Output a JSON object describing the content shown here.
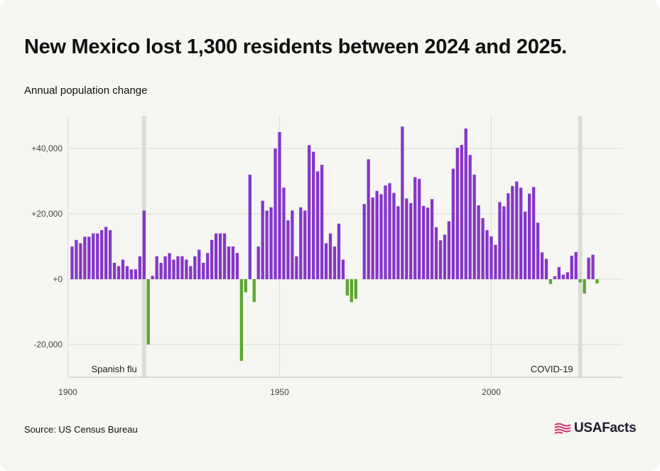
{
  "header": {
    "title": "New Mexico lost 1,300 residents between 2024 and 2025.",
    "subtitle": "Annual population change"
  },
  "footer": {
    "source": "Source: US Census Bureau",
    "logo_text": "USAFacts",
    "logo_icon": "usafacts-flag-icon"
  },
  "colors": {
    "positive": "#8536c9",
    "negative": "#5aa730",
    "highlight_band": "#dcdcd8",
    "gridline": "#dcdcd6",
    "background": "#f6f6f2",
    "logo_accent": "#d6336c"
  },
  "chart_data": {
    "type": "bar",
    "title": "New Mexico lost 1,300 residents between 2024 and 2025.",
    "ylabel": "Annual population change",
    "xlabel": "",
    "ylim": [
      -30000,
      50000
    ],
    "xlim": [
      1899,
      2030
    ],
    "yticks": [
      -20000,
      0,
      20000,
      40000
    ],
    "ytick_labels": [
      "-20,000",
      "+0",
      "+20,000",
      "+40,000"
    ],
    "xticks": [
      1900,
      1950,
      2000
    ],
    "xtick_labels": [
      "1900",
      "1950",
      "2000"
    ],
    "grid": true,
    "legend": "none",
    "annotations": [
      {
        "label": "Spanish flu",
        "year": 1918
      },
      {
        "label": "COVID-19",
        "year": 2021
      }
    ],
    "x": [
      1901,
      1902,
      1903,
      1904,
      1905,
      1906,
      1907,
      1908,
      1909,
      1910,
      1911,
      1912,
      1913,
      1914,
      1915,
      1916,
      1917,
      1918,
      1919,
      1920,
      1921,
      1922,
      1923,
      1924,
      1925,
      1926,
      1927,
      1928,
      1929,
      1930,
      1931,
      1932,
      1933,
      1934,
      1935,
      1936,
      1937,
      1938,
      1939,
      1940,
      1941,
      1942,
      1943,
      1944,
      1945,
      1946,
      1947,
      1948,
      1949,
      1950,
      1951,
      1952,
      1953,
      1954,
      1955,
      1956,
      1957,
      1958,
      1959,
      1960,
      1961,
      1962,
      1963,
      1964,
      1965,
      1966,
      1967,
      1968,
      1969,
      1970,
      1971,
      1972,
      1973,
      1974,
      1975,
      1976,
      1977,
      1978,
      1979,
      1980,
      1981,
      1982,
      1983,
      1984,
      1985,
      1986,
      1987,
      1988,
      1989,
      1990,
      1991,
      1992,
      1993,
      1994,
      1995,
      1996,
      1997,
      1998,
      1999,
      2000,
      2001,
      2002,
      2003,
      2004,
      2005,
      2006,
      2007,
      2008,
      2009,
      2010,
      2011,
      2012,
      2013,
      2014,
      2015,
      2016,
      2017,
      2018,
      2019,
      2020,
      2021,
      2022,
      2023,
      2024,
      2025
    ],
    "values": [
      10000,
      12000,
      11000,
      13000,
      13000,
      14000,
      14000,
      15000,
      16000,
      15000,
      5000,
      4000,
      6000,
      4000,
      3000,
      3000,
      7000,
      21000,
      -20000,
      1000,
      7000,
      5000,
      7000,
      8000,
      6000,
      7000,
      7000,
      6000,
      4000,
      7000,
      9000,
      5000,
      8000,
      12000,
      14000,
      14000,
      14000,
      10000,
      10000,
      8000,
      -25000,
      -4000,
      32000,
      -7000,
      10000,
      24000,
      21000,
      22000,
      40000,
      45000,
      28000,
      18000,
      21000,
      7000,
      22000,
      21000,
      41000,
      39000,
      33000,
      35000,
      11000,
      14000,
      10000,
      17000,
      6000,
      -5000,
      -7000,
      -6000,
      0,
      23000,
      36700,
      25000,
      27000,
      26000,
      28700,
      29400,
      26400,
      22300,
      46700,
      24700,
      23300,
      31200,
      30700,
      22400,
      21900,
      24500,
      15900,
      11900,
      13600,
      17700,
      33800,
      40200,
      41100,
      46100,
      38000,
      32000,
      22600,
      18700,
      15000,
      13100,
      10500,
      23600,
      22300,
      26300,
      28500,
      29900,
      28000,
      20700,
      26200,
      28200,
      17300,
      8200,
      6200,
      -1500,
      900,
      3700,
      1400,
      2100,
      7200,
      8300,
      -1000,
      -4400,
      6600,
      7500,
      -1300
    ]
  }
}
